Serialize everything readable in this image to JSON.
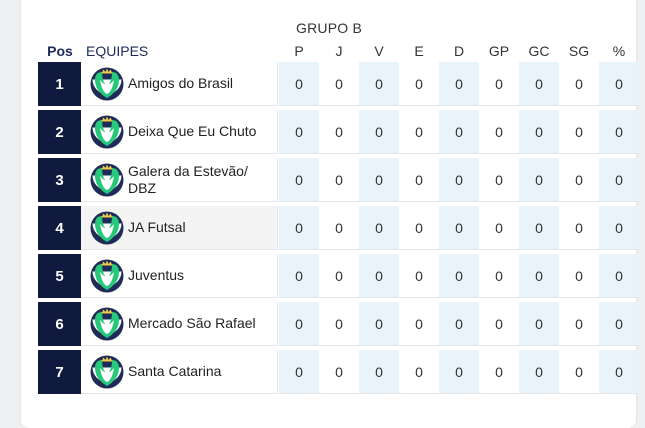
{
  "group_title": "GRUPO B",
  "headers": {
    "pos": "Pos",
    "team": "EQUIPES",
    "stats": [
      "P",
      "J",
      "V",
      "E",
      "D",
      "GP",
      "GC",
      "SG",
      "%"
    ]
  },
  "colors": {
    "position_bg": "#101a3e",
    "header_blue": "#1c2a5a",
    "shaded_column": "#e9f3fa",
    "logo_green": "#27c87a"
  },
  "rows": [
    {
      "pos": "1",
      "team": "Amigos do Brasil",
      "stats": [
        "0",
        "0",
        "0",
        "0",
        "0",
        "0",
        "0",
        "0",
        "0"
      ]
    },
    {
      "pos": "2",
      "team": "Deixa Que Eu Chuto",
      "stats": [
        "0",
        "0",
        "0",
        "0",
        "0",
        "0",
        "0",
        "0",
        "0"
      ]
    },
    {
      "pos": "3",
      "team": "Galera da Estevão/ DBZ",
      "stats": [
        "0",
        "0",
        "0",
        "0",
        "0",
        "0",
        "0",
        "0",
        "0"
      ]
    },
    {
      "pos": "4",
      "team": "JA Futsal",
      "stats": [
        "0",
        "0",
        "0",
        "0",
        "0",
        "0",
        "0",
        "0",
        "0"
      ]
    },
    {
      "pos": "5",
      "team": "Juventus",
      "stats": [
        "0",
        "0",
        "0",
        "0",
        "0",
        "0",
        "0",
        "0",
        "0"
      ]
    },
    {
      "pos": "6",
      "team": "Mercado São Rafael",
      "stats": [
        "0",
        "0",
        "0",
        "0",
        "0",
        "0",
        "0",
        "0",
        "0"
      ]
    },
    {
      "pos": "7",
      "team": "Santa Catarina",
      "stats": [
        "0",
        "0",
        "0",
        "0",
        "0",
        "0",
        "0",
        "0",
        "0"
      ]
    }
  ]
}
